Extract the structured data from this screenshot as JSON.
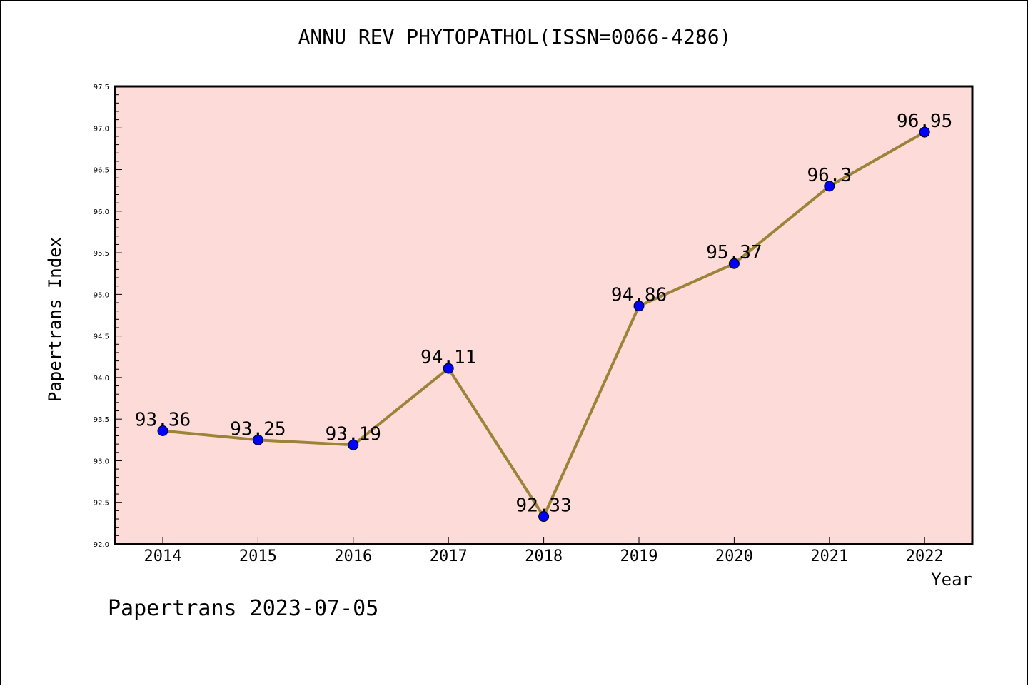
{
  "chart_data": {
    "type": "line",
    "title": "ANNU REV PHYTOPATHOL(ISSN=0066-4286)",
    "xlabel": "Year",
    "ylabel": "Papertrans Index",
    "categories": [
      "2014",
      "2015",
      "2016",
      "2017",
      "2018",
      "2019",
      "2020",
      "2021",
      "2022"
    ],
    "values": [
      93.36,
      93.25,
      93.19,
      94.11,
      92.33,
      94.86,
      95.37,
      96.3,
      96.95
    ],
    "data_labels": [
      "93.36",
      "93.25",
      "93.19",
      "94.11",
      "92.33",
      "94.86",
      "95.37",
      "96.3",
      "96.95"
    ],
    "ylim": [
      92.0,
      97.5
    ],
    "yticks": [
      "92.0",
      "92.5",
      "93.0",
      "93.5",
      "94.0",
      "94.5",
      "95.0",
      "95.5",
      "96.0",
      "96.5",
      "97.0",
      "97.5"
    ],
    "grid": false,
    "legend": "none",
    "colors": {
      "plot_background": "#fddbd8",
      "line": "#9b8439",
      "marker": "#0000ff",
      "axis": "#000000"
    }
  },
  "footer": {
    "note": "Papertrans 2023-07-05"
  }
}
